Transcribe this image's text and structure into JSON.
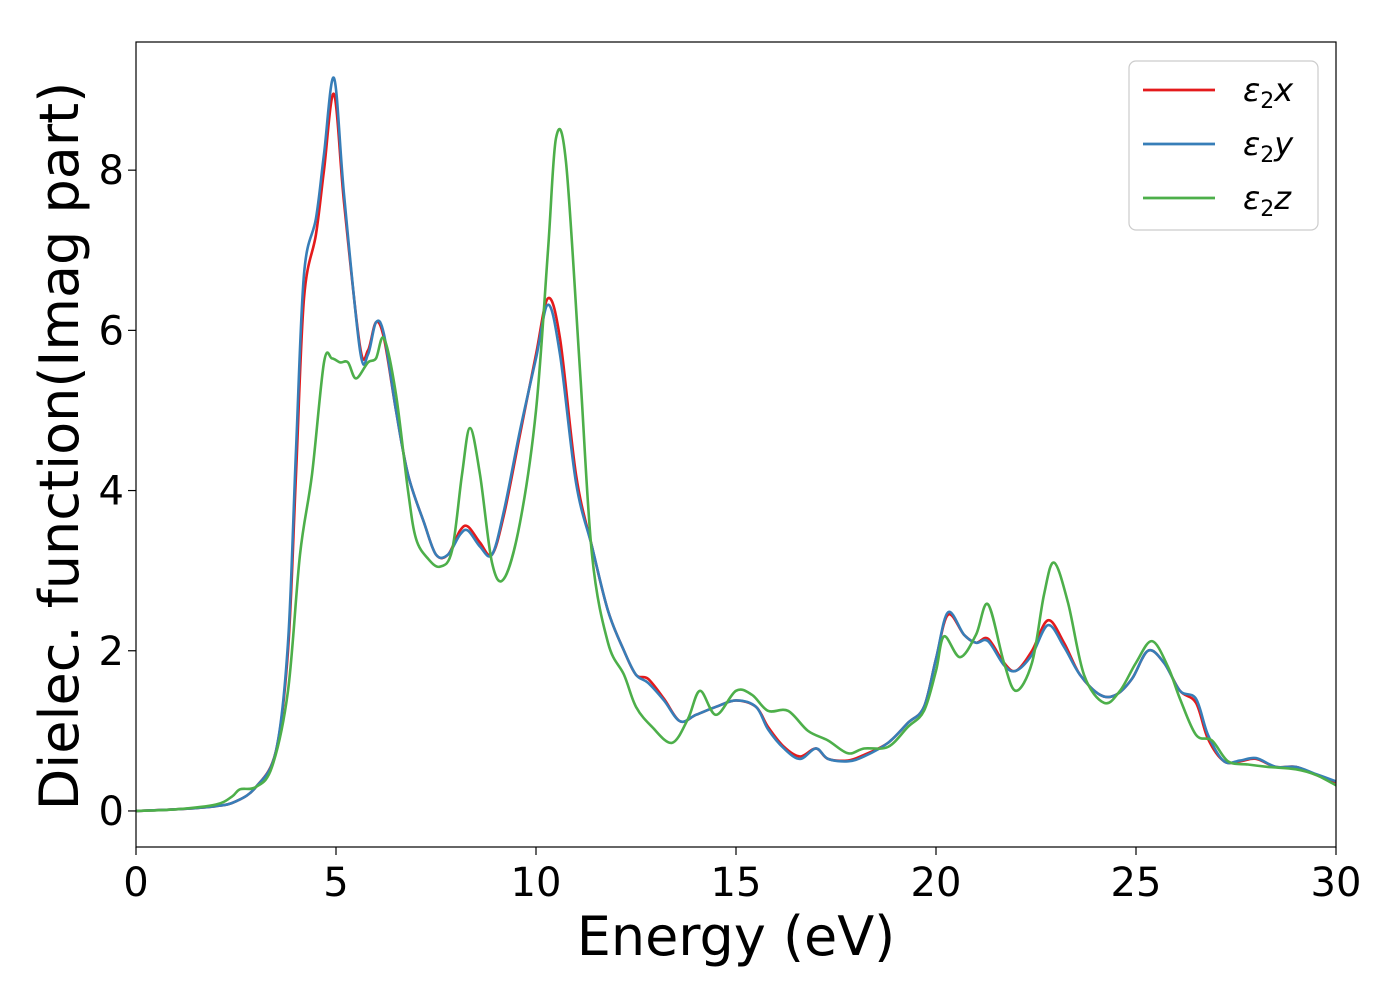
{
  "chart_data": {
    "type": "line",
    "title": "",
    "xlabel": "Energy (eV)",
    "ylabel": "Dielec. function(Imag part)",
    "xlim": [
      0,
      30
    ],
    "ylim": [
      -0.45,
      9.6
    ],
    "xticks": [
      0,
      5,
      10,
      15,
      20,
      25,
      30
    ],
    "yticks": [
      0,
      2,
      4,
      6,
      8
    ],
    "grid": false,
    "legend_position": "top-right",
    "series": [
      {
        "name": "ε2x",
        "legend_main": "ε",
        "legend_sub": "2",
        "legend_var": "x",
        "color": "#e41a1c",
        "points": [
          [
            0,
            0
          ],
          [
            1,
            0.02
          ],
          [
            2,
            0.06
          ],
          [
            2.5,
            0.12
          ],
          [
            3,
            0.3
          ],
          [
            3.5,
            0.75
          ],
          [
            3.8,
            2.0
          ],
          [
            4.0,
            4.2
          ],
          [
            4.2,
            6.4
          ],
          [
            4.5,
            7.2
          ],
          [
            4.7,
            8.0
          ],
          [
            4.95,
            8.95
          ],
          [
            5.2,
            7.6
          ],
          [
            5.6,
            5.8
          ],
          [
            5.8,
            5.75
          ],
          [
            6.0,
            6.1
          ],
          [
            6.2,
            5.9
          ],
          [
            6.5,
            5.0
          ],
          [
            6.8,
            4.2
          ],
          [
            7.2,
            3.6
          ],
          [
            7.5,
            3.2
          ],
          [
            7.8,
            3.2
          ],
          [
            8.1,
            3.5
          ],
          [
            8.3,
            3.55
          ],
          [
            8.6,
            3.35
          ],
          [
            8.9,
            3.2
          ],
          [
            9.2,
            3.7
          ],
          [
            9.6,
            4.7
          ],
          [
            10.0,
            5.7
          ],
          [
            10.3,
            6.4
          ],
          [
            10.6,
            5.9
          ],
          [
            11.0,
            4.2
          ],
          [
            11.4,
            3.3
          ],
          [
            11.8,
            2.5
          ],
          [
            12.2,
            2.0
          ],
          [
            12.5,
            1.7
          ],
          [
            12.8,
            1.65
          ],
          [
            13.2,
            1.4
          ],
          [
            13.6,
            1.12
          ],
          [
            14.0,
            1.2
          ],
          [
            14.5,
            1.3
          ],
          [
            15.0,
            1.38
          ],
          [
            15.5,
            1.3
          ],
          [
            15.8,
            1.05
          ],
          [
            16.2,
            0.8
          ],
          [
            16.6,
            0.68
          ],
          [
            17.0,
            0.78
          ],
          [
            17.3,
            0.65
          ],
          [
            17.8,
            0.63
          ],
          [
            18.2,
            0.7
          ],
          [
            18.8,
            0.85
          ],
          [
            19.3,
            1.1
          ],
          [
            19.7,
            1.3
          ],
          [
            20.0,
            1.9
          ],
          [
            20.3,
            2.45
          ],
          [
            20.7,
            2.2
          ],
          [
            21.0,
            2.1
          ],
          [
            21.3,
            2.15
          ],
          [
            21.7,
            1.85
          ],
          [
            22.0,
            1.75
          ],
          [
            22.4,
            2.0
          ],
          [
            22.8,
            2.38
          ],
          [
            23.2,
            2.1
          ],
          [
            23.6,
            1.7
          ],
          [
            24.1,
            1.45
          ],
          [
            24.5,
            1.45
          ],
          [
            24.9,
            1.65
          ],
          [
            25.3,
            2.0
          ],
          [
            25.7,
            1.85
          ],
          [
            26.1,
            1.5
          ],
          [
            26.5,
            1.35
          ],
          [
            26.8,
            0.9
          ],
          [
            27.2,
            0.62
          ],
          [
            27.6,
            0.62
          ],
          [
            28.0,
            0.65
          ],
          [
            28.5,
            0.55
          ],
          [
            29.0,
            0.55
          ],
          [
            29.5,
            0.45
          ],
          [
            30,
            0.36
          ]
        ]
      },
      {
        "name": "ε2y",
        "legend_main": "ε",
        "legend_sub": "2",
        "legend_var": "y",
        "color": "#377eb8",
        "points": [
          [
            0,
            0
          ],
          [
            1,
            0.02
          ],
          [
            2,
            0.06
          ],
          [
            2.5,
            0.12
          ],
          [
            3,
            0.3
          ],
          [
            3.5,
            0.75
          ],
          [
            3.8,
            2.1
          ],
          [
            4.0,
            4.5
          ],
          [
            4.2,
            6.7
          ],
          [
            4.5,
            7.4
          ],
          [
            4.7,
            8.2
          ],
          [
            4.95,
            9.15
          ],
          [
            5.2,
            7.7
          ],
          [
            5.6,
            5.75
          ],
          [
            5.8,
            5.7
          ],
          [
            6.0,
            6.1
          ],
          [
            6.2,
            5.95
          ],
          [
            6.5,
            5.0
          ],
          [
            6.8,
            4.2
          ],
          [
            7.2,
            3.6
          ],
          [
            7.5,
            3.2
          ],
          [
            7.8,
            3.2
          ],
          [
            8.1,
            3.45
          ],
          [
            8.3,
            3.5
          ],
          [
            8.6,
            3.3
          ],
          [
            8.9,
            3.2
          ],
          [
            9.2,
            3.75
          ],
          [
            9.6,
            4.75
          ],
          [
            10.0,
            5.65
          ],
          [
            10.3,
            6.32
          ],
          [
            10.6,
            5.7
          ],
          [
            11.0,
            4.1
          ],
          [
            11.4,
            3.3
          ],
          [
            11.8,
            2.5
          ],
          [
            12.2,
            2.0
          ],
          [
            12.5,
            1.7
          ],
          [
            12.8,
            1.6
          ],
          [
            13.2,
            1.38
          ],
          [
            13.6,
            1.12
          ],
          [
            14.0,
            1.2
          ],
          [
            14.5,
            1.3
          ],
          [
            15.0,
            1.38
          ],
          [
            15.5,
            1.3
          ],
          [
            15.8,
            1.02
          ],
          [
            16.2,
            0.78
          ],
          [
            16.6,
            0.65
          ],
          [
            17.0,
            0.78
          ],
          [
            17.3,
            0.65
          ],
          [
            17.8,
            0.62
          ],
          [
            18.2,
            0.68
          ],
          [
            18.8,
            0.85
          ],
          [
            19.3,
            1.1
          ],
          [
            19.7,
            1.3
          ],
          [
            20.0,
            1.9
          ],
          [
            20.3,
            2.48
          ],
          [
            20.7,
            2.2
          ],
          [
            21.0,
            2.1
          ],
          [
            21.3,
            2.12
          ],
          [
            21.7,
            1.82
          ],
          [
            22.0,
            1.75
          ],
          [
            22.4,
            1.95
          ],
          [
            22.8,
            2.32
          ],
          [
            23.2,
            2.05
          ],
          [
            23.6,
            1.7
          ],
          [
            24.1,
            1.45
          ],
          [
            24.5,
            1.45
          ],
          [
            24.9,
            1.65
          ],
          [
            25.3,
            2.0
          ],
          [
            25.7,
            1.85
          ],
          [
            26.1,
            1.5
          ],
          [
            26.5,
            1.4
          ],
          [
            26.8,
            0.95
          ],
          [
            27.2,
            0.62
          ],
          [
            27.6,
            0.63
          ],
          [
            28.0,
            0.66
          ],
          [
            28.5,
            0.55
          ],
          [
            29.0,
            0.55
          ],
          [
            29.5,
            0.46
          ],
          [
            30,
            0.37
          ]
        ]
      },
      {
        "name": "ε2z",
        "legend_main": "ε",
        "legend_sub": "2",
        "legend_var": "z",
        "color": "#4daf4a",
        "points": [
          [
            0,
            0
          ],
          [
            1,
            0.02
          ],
          [
            2,
            0.08
          ],
          [
            2.4,
            0.18
          ],
          [
            2.6,
            0.27
          ],
          [
            3.0,
            0.3
          ],
          [
            3.4,
            0.55
          ],
          [
            3.8,
            1.5
          ],
          [
            4.1,
            3.2
          ],
          [
            4.4,
            4.2
          ],
          [
            4.7,
            5.6
          ],
          [
            4.9,
            5.65
          ],
          [
            5.1,
            5.6
          ],
          [
            5.3,
            5.6
          ],
          [
            5.5,
            5.4
          ],
          [
            5.8,
            5.6
          ],
          [
            6.0,
            5.65
          ],
          [
            6.2,
            5.9
          ],
          [
            6.5,
            5.2
          ],
          [
            6.8,
            4.0
          ],
          [
            7.0,
            3.4
          ],
          [
            7.3,
            3.15
          ],
          [
            7.6,
            3.05
          ],
          [
            7.9,
            3.25
          ],
          [
            8.15,
            4.2
          ],
          [
            8.35,
            4.78
          ],
          [
            8.6,
            4.2
          ],
          [
            8.9,
            3.1
          ],
          [
            9.2,
            2.9
          ],
          [
            9.6,
            3.6
          ],
          [
            10.0,
            5.0
          ],
          [
            10.3,
            7.0
          ],
          [
            10.5,
            8.4
          ],
          [
            10.75,
            8.1
          ],
          [
            11.1,
            5.5
          ],
          [
            11.4,
            3.2
          ],
          [
            11.8,
            2.1
          ],
          [
            12.2,
            1.7
          ],
          [
            12.5,
            1.3
          ],
          [
            12.9,
            1.05
          ],
          [
            13.4,
            0.85
          ],
          [
            13.8,
            1.15
          ],
          [
            14.1,
            1.5
          ],
          [
            14.5,
            1.2
          ],
          [
            15.0,
            1.5
          ],
          [
            15.4,
            1.45
          ],
          [
            15.8,
            1.25
          ],
          [
            16.3,
            1.25
          ],
          [
            16.8,
            1.0
          ],
          [
            17.3,
            0.88
          ],
          [
            17.8,
            0.72
          ],
          [
            18.2,
            0.78
          ],
          [
            18.8,
            0.8
          ],
          [
            19.3,
            1.05
          ],
          [
            19.7,
            1.25
          ],
          [
            20.0,
            1.75
          ],
          [
            20.2,
            2.18
          ],
          [
            20.6,
            1.92
          ],
          [
            21.0,
            2.2
          ],
          [
            21.3,
            2.58
          ],
          [
            21.7,
            1.85
          ],
          [
            22.0,
            1.5
          ],
          [
            22.4,
            1.85
          ],
          [
            22.7,
            2.7
          ],
          [
            22.95,
            3.1
          ],
          [
            23.3,
            2.6
          ],
          [
            23.7,
            1.7
          ],
          [
            24.2,
            1.35
          ],
          [
            24.6,
            1.5
          ],
          [
            25.0,
            1.85
          ],
          [
            25.4,
            2.12
          ],
          [
            25.8,
            1.8
          ],
          [
            26.1,
            1.4
          ],
          [
            26.5,
            0.95
          ],
          [
            26.9,
            0.88
          ],
          [
            27.3,
            0.62
          ],
          [
            27.8,
            0.58
          ],
          [
            28.3,
            0.55
          ],
          [
            29.0,
            0.52
          ],
          [
            29.5,
            0.45
          ],
          [
            30,
            0.32
          ]
        ]
      }
    ]
  }
}
